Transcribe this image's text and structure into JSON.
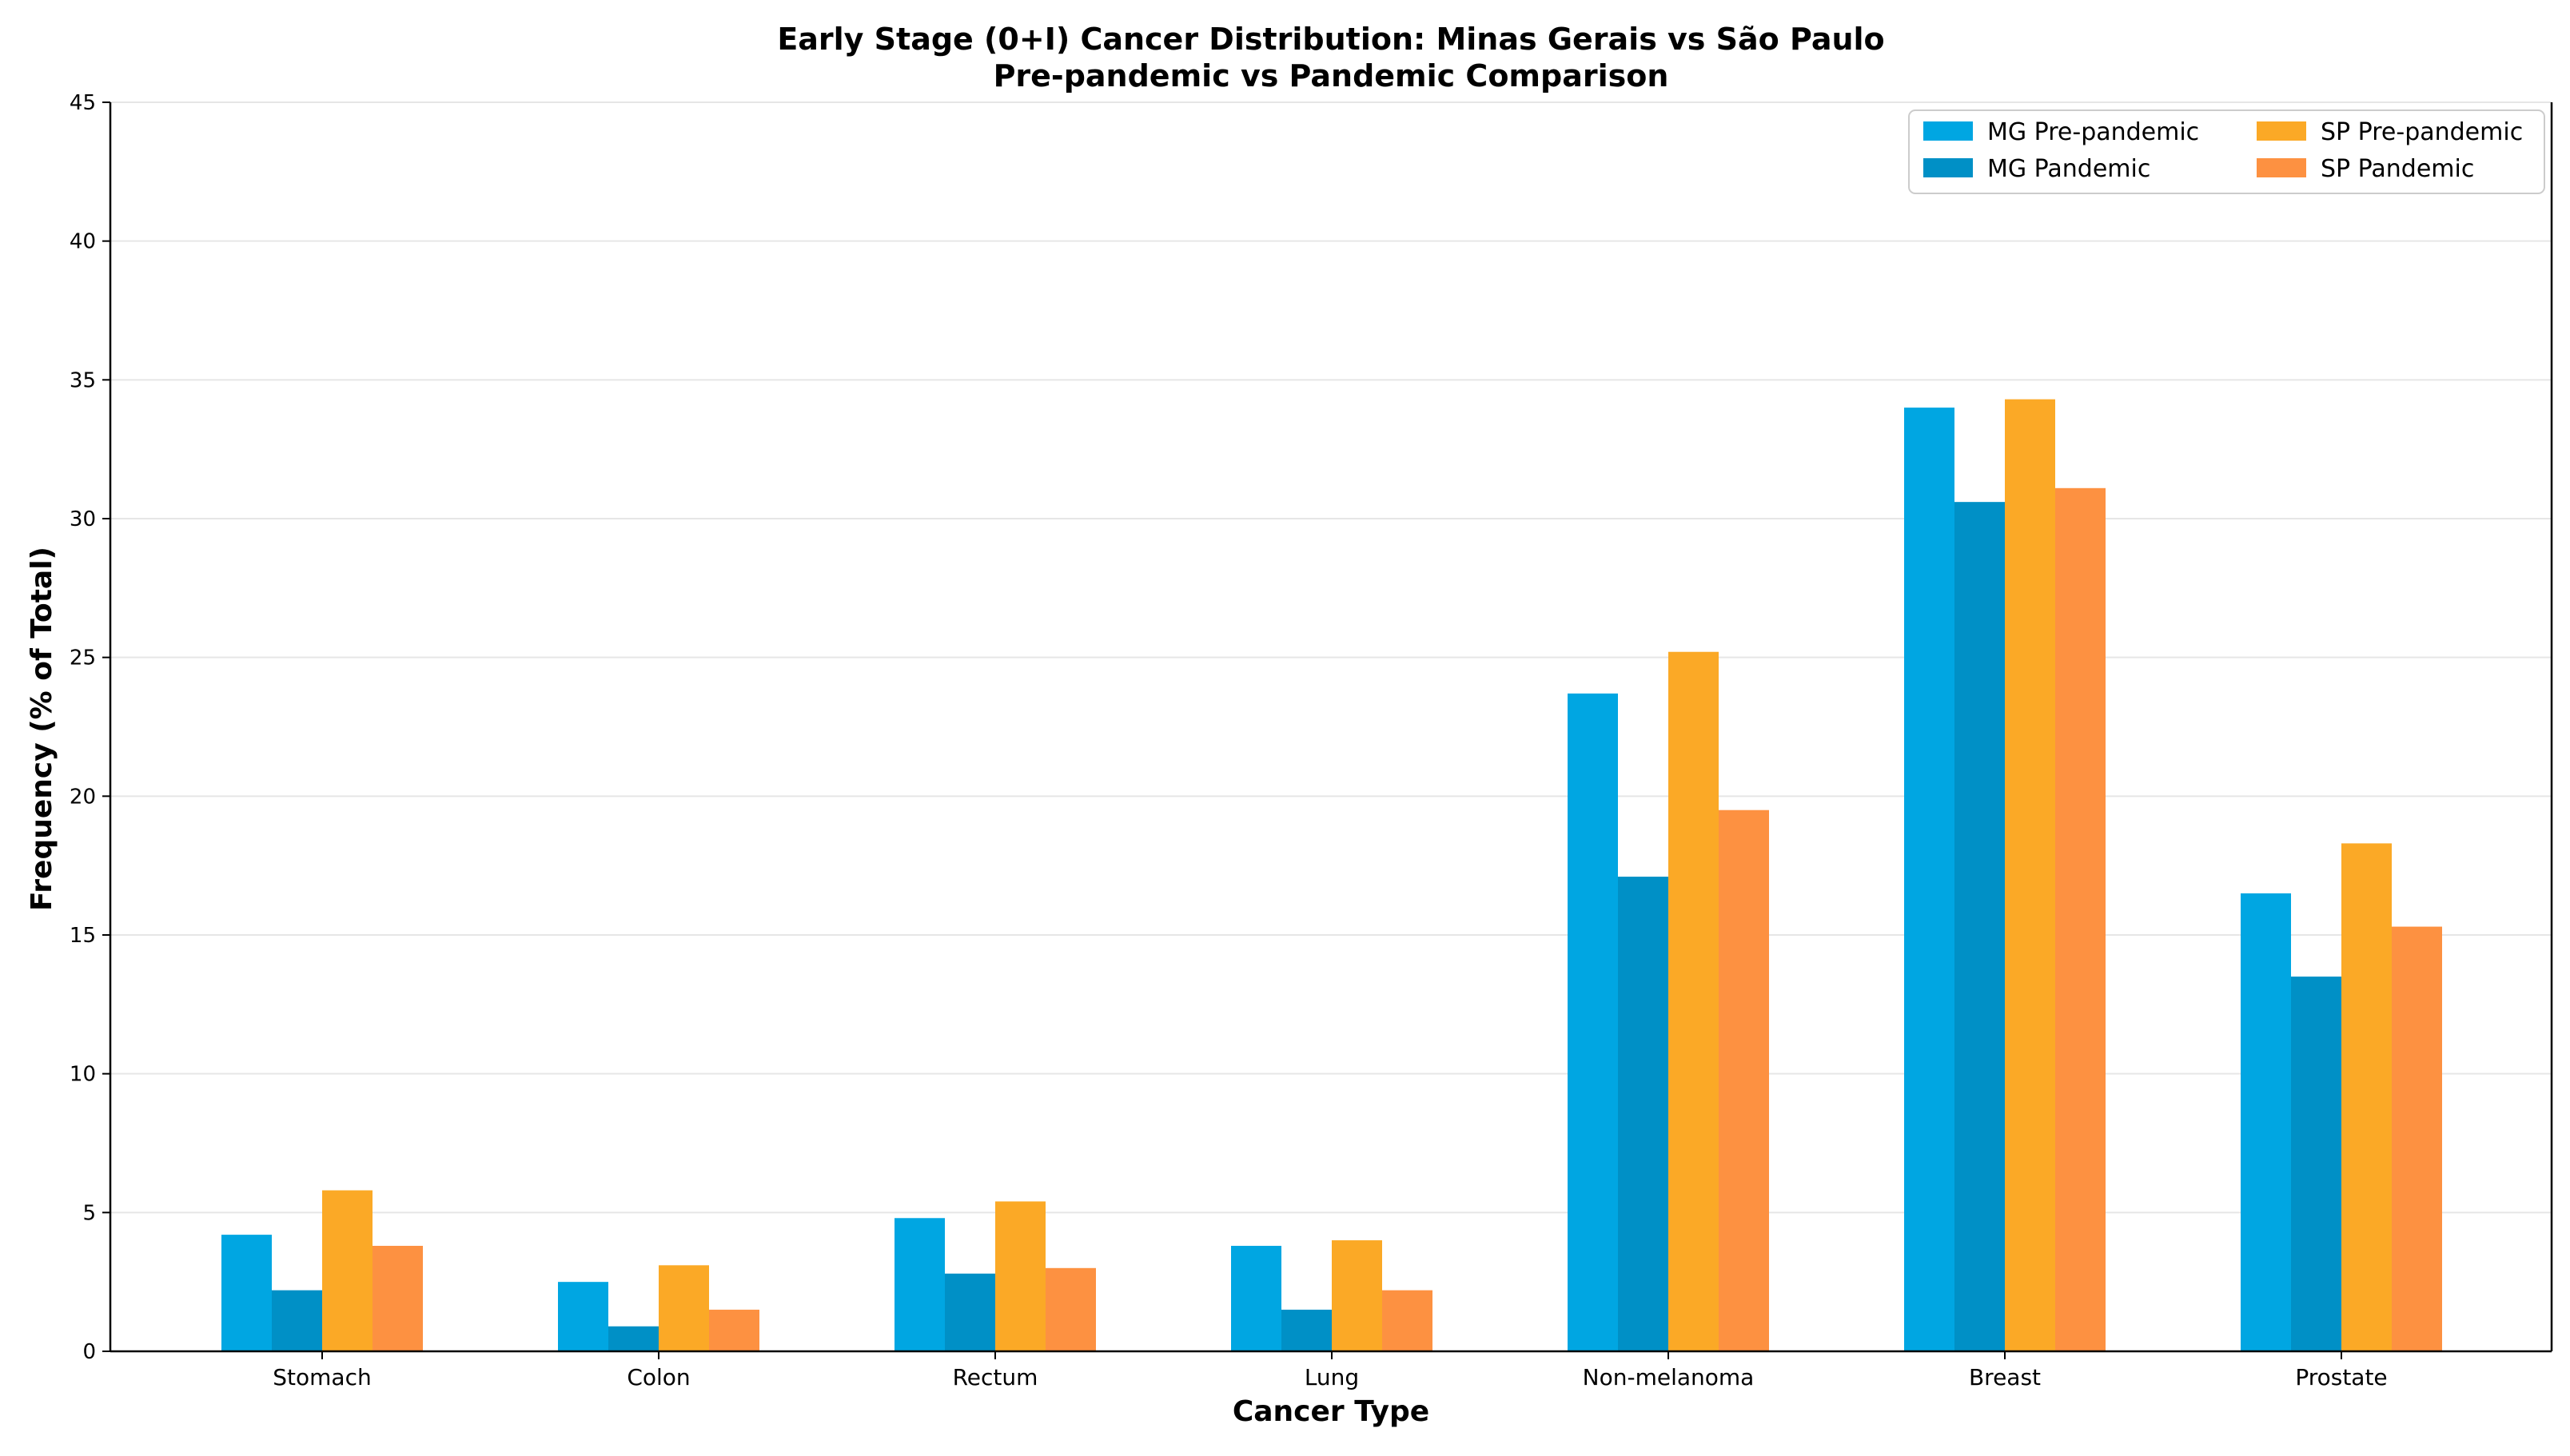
{
  "chart_data": {
    "type": "bar",
    "title": "Early Stage (0+I) Cancer Distribution: Minas Gerais vs São Paulo",
    "subtitle": "Pre-pandemic vs Pandemic Comparison",
    "xlabel": "Cancer Type",
    "ylabel": "Frequency (% of Total)",
    "ylim": [
      0,
      45
    ],
    "yticks": [
      0,
      5,
      10,
      15,
      20,
      25,
      30,
      35,
      40,
      45
    ],
    "grid": true,
    "legend_position": "top-right",
    "categories": [
      "Stomach",
      "Colon",
      "Rectum",
      "Lung",
      "Non-melanoma",
      "Breast",
      "Prostate"
    ],
    "series": [
      {
        "name": "MG Pre-pandemic",
        "color": "#00A6E2",
        "values": [
          4.2,
          2.5,
          4.8,
          3.8,
          23.7,
          34.0,
          16.5
        ]
      },
      {
        "name": "MG Pandemic",
        "color": "#0090C6",
        "values": [
          2.2,
          0.9,
          2.8,
          1.5,
          17.1,
          30.6,
          13.5
        ]
      },
      {
        "name": "SP Pre-pandemic",
        "color": "#FBA926",
        "values": [
          5.8,
          3.1,
          5.4,
          4.0,
          25.2,
          34.3,
          18.3
        ]
      },
      {
        "name": "SP Pandemic",
        "color": "#FD9141",
        "values": [
          3.8,
          1.5,
          3.0,
          2.2,
          19.5,
          31.1,
          15.3
        ]
      }
    ]
  }
}
